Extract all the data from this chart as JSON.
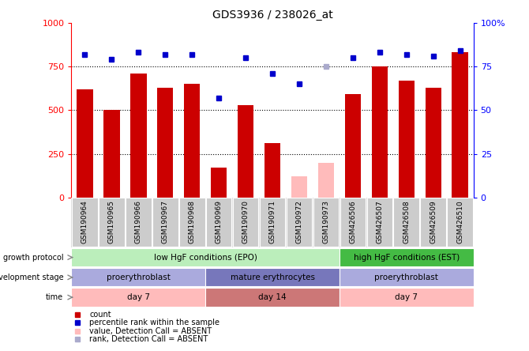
{
  "title": "GDS3936 / 238026_at",
  "samples": [
    "GSM190964",
    "GSM190965",
    "GSM190966",
    "GSM190967",
    "GSM190968",
    "GSM190969",
    "GSM190970",
    "GSM190971",
    "GSM190972",
    "GSM190973",
    "GSM426506",
    "GSM426507",
    "GSM426508",
    "GSM426509",
    "GSM426510"
  ],
  "bar_values": [
    620,
    500,
    710,
    630,
    650,
    170,
    530,
    310,
    120,
    200,
    590,
    750,
    670,
    630,
    830
  ],
  "bar_absent": [
    false,
    false,
    false,
    false,
    false,
    false,
    false,
    false,
    true,
    true,
    false,
    false,
    false,
    false,
    false
  ],
  "percentile_values": [
    82,
    79,
    83,
    82,
    82,
    57,
    80,
    71,
    65,
    75,
    80,
    83,
    82,
    81,
    84
  ],
  "percentile_absent": [
    false,
    false,
    false,
    false,
    false,
    false,
    false,
    false,
    false,
    true,
    false,
    false,
    false,
    false,
    false
  ],
  "ylim_left": [
    0,
    1000
  ],
  "ylim_right": [
    0,
    100
  ],
  "yticks_left": [
    0,
    250,
    500,
    750,
    1000
  ],
  "yticks_right": [
    0,
    25,
    50,
    75,
    100
  ],
  "ytick_right_labels": [
    "0",
    "25",
    "50",
    "75",
    "100%"
  ],
  "bar_color_normal": "#cc0000",
  "bar_color_absent": "#ffbbbb",
  "dot_color_normal": "#0000cc",
  "dot_color_absent": "#aaaacc",
  "grid_dotted_vals": [
    250,
    500,
    750
  ],
  "annotation_rows": [
    {
      "label": "growth protocol",
      "segments": [
        {
          "text": "low HgF conditions (EPO)",
          "start": 0,
          "end": 10,
          "color": "#bbeebb"
        },
        {
          "text": "high HgF conditions (EST)",
          "start": 10,
          "end": 15,
          "color": "#44bb44"
        }
      ]
    },
    {
      "label": "development stage",
      "segments": [
        {
          "text": "proerythroblast",
          "start": 0,
          "end": 5,
          "color": "#aaaadd"
        },
        {
          "text": "mature erythrocytes",
          "start": 5,
          "end": 10,
          "color": "#7777bb"
        },
        {
          "text": "proerythroblast",
          "start": 10,
          "end": 15,
          "color": "#aaaadd"
        }
      ]
    },
    {
      "label": "time",
      "segments": [
        {
          "text": "day 7",
          "start": 0,
          "end": 5,
          "color": "#ffbbbb"
        },
        {
          "text": "day 14",
          "start": 5,
          "end": 10,
          "color": "#cc7777"
        },
        {
          "text": "day 7",
          "start": 10,
          "end": 15,
          "color": "#ffbbbb"
        }
      ]
    }
  ],
  "legend_items": [
    {
      "label": "count",
      "color": "#cc0000"
    },
    {
      "label": "percentile rank within the sample",
      "color": "#0000cc"
    },
    {
      "label": "value, Detection Call = ABSENT",
      "color": "#ffbbbb"
    },
    {
      "label": "rank, Detection Call = ABSENT",
      "color": "#aaaacc"
    }
  ]
}
